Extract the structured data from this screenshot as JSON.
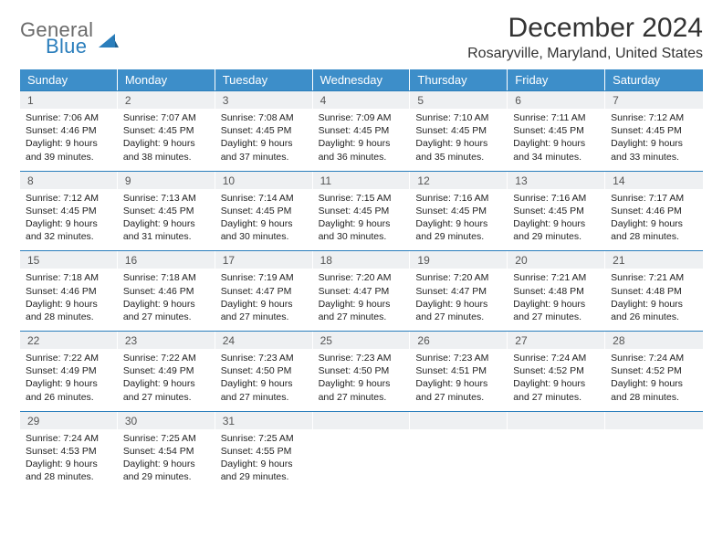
{
  "logo": {
    "top": "General",
    "bottom": "Blue"
  },
  "title": "December 2024",
  "subtitle": "Rosaryville, Maryland, United States",
  "colors": {
    "header_bg": "#3d8ec9",
    "header_text": "#ffffff",
    "daynum_bg": "#eef0f2",
    "week_divider": "#2a7ebc",
    "logo_gray": "#6a6a6a",
    "logo_blue": "#2a7ebc"
  },
  "day_names": [
    "Sunday",
    "Monday",
    "Tuesday",
    "Wednesday",
    "Thursday",
    "Friday",
    "Saturday"
  ],
  "weeks": [
    [
      {
        "n": "1",
        "sr": "Sunrise: 7:06 AM",
        "ss": "Sunset: 4:46 PM",
        "dl1": "Daylight: 9 hours",
        "dl2": "and 39 minutes."
      },
      {
        "n": "2",
        "sr": "Sunrise: 7:07 AM",
        "ss": "Sunset: 4:45 PM",
        "dl1": "Daylight: 9 hours",
        "dl2": "and 38 minutes."
      },
      {
        "n": "3",
        "sr": "Sunrise: 7:08 AM",
        "ss": "Sunset: 4:45 PM",
        "dl1": "Daylight: 9 hours",
        "dl2": "and 37 minutes."
      },
      {
        "n": "4",
        "sr": "Sunrise: 7:09 AM",
        "ss": "Sunset: 4:45 PM",
        "dl1": "Daylight: 9 hours",
        "dl2": "and 36 minutes."
      },
      {
        "n": "5",
        "sr": "Sunrise: 7:10 AM",
        "ss": "Sunset: 4:45 PM",
        "dl1": "Daylight: 9 hours",
        "dl2": "and 35 minutes."
      },
      {
        "n": "6",
        "sr": "Sunrise: 7:11 AM",
        "ss": "Sunset: 4:45 PM",
        "dl1": "Daylight: 9 hours",
        "dl2": "and 34 minutes."
      },
      {
        "n": "7",
        "sr": "Sunrise: 7:12 AM",
        "ss": "Sunset: 4:45 PM",
        "dl1": "Daylight: 9 hours",
        "dl2": "and 33 minutes."
      }
    ],
    [
      {
        "n": "8",
        "sr": "Sunrise: 7:12 AM",
        "ss": "Sunset: 4:45 PM",
        "dl1": "Daylight: 9 hours",
        "dl2": "and 32 minutes."
      },
      {
        "n": "9",
        "sr": "Sunrise: 7:13 AM",
        "ss": "Sunset: 4:45 PM",
        "dl1": "Daylight: 9 hours",
        "dl2": "and 31 minutes."
      },
      {
        "n": "10",
        "sr": "Sunrise: 7:14 AM",
        "ss": "Sunset: 4:45 PM",
        "dl1": "Daylight: 9 hours",
        "dl2": "and 30 minutes."
      },
      {
        "n": "11",
        "sr": "Sunrise: 7:15 AM",
        "ss": "Sunset: 4:45 PM",
        "dl1": "Daylight: 9 hours",
        "dl2": "and 30 minutes."
      },
      {
        "n": "12",
        "sr": "Sunrise: 7:16 AM",
        "ss": "Sunset: 4:45 PM",
        "dl1": "Daylight: 9 hours",
        "dl2": "and 29 minutes."
      },
      {
        "n": "13",
        "sr": "Sunrise: 7:16 AM",
        "ss": "Sunset: 4:45 PM",
        "dl1": "Daylight: 9 hours",
        "dl2": "and 29 minutes."
      },
      {
        "n": "14",
        "sr": "Sunrise: 7:17 AM",
        "ss": "Sunset: 4:46 PM",
        "dl1": "Daylight: 9 hours",
        "dl2": "and 28 minutes."
      }
    ],
    [
      {
        "n": "15",
        "sr": "Sunrise: 7:18 AM",
        "ss": "Sunset: 4:46 PM",
        "dl1": "Daylight: 9 hours",
        "dl2": "and 28 minutes."
      },
      {
        "n": "16",
        "sr": "Sunrise: 7:18 AM",
        "ss": "Sunset: 4:46 PM",
        "dl1": "Daylight: 9 hours",
        "dl2": "and 27 minutes."
      },
      {
        "n": "17",
        "sr": "Sunrise: 7:19 AM",
        "ss": "Sunset: 4:47 PM",
        "dl1": "Daylight: 9 hours",
        "dl2": "and 27 minutes."
      },
      {
        "n": "18",
        "sr": "Sunrise: 7:20 AM",
        "ss": "Sunset: 4:47 PM",
        "dl1": "Daylight: 9 hours",
        "dl2": "and 27 minutes."
      },
      {
        "n": "19",
        "sr": "Sunrise: 7:20 AM",
        "ss": "Sunset: 4:47 PM",
        "dl1": "Daylight: 9 hours",
        "dl2": "and 27 minutes."
      },
      {
        "n": "20",
        "sr": "Sunrise: 7:21 AM",
        "ss": "Sunset: 4:48 PM",
        "dl1": "Daylight: 9 hours",
        "dl2": "and 27 minutes."
      },
      {
        "n": "21",
        "sr": "Sunrise: 7:21 AM",
        "ss": "Sunset: 4:48 PM",
        "dl1": "Daylight: 9 hours",
        "dl2": "and 26 minutes."
      }
    ],
    [
      {
        "n": "22",
        "sr": "Sunrise: 7:22 AM",
        "ss": "Sunset: 4:49 PM",
        "dl1": "Daylight: 9 hours",
        "dl2": "and 26 minutes."
      },
      {
        "n": "23",
        "sr": "Sunrise: 7:22 AM",
        "ss": "Sunset: 4:49 PM",
        "dl1": "Daylight: 9 hours",
        "dl2": "and 27 minutes."
      },
      {
        "n": "24",
        "sr": "Sunrise: 7:23 AM",
        "ss": "Sunset: 4:50 PM",
        "dl1": "Daylight: 9 hours",
        "dl2": "and 27 minutes."
      },
      {
        "n": "25",
        "sr": "Sunrise: 7:23 AM",
        "ss": "Sunset: 4:50 PM",
        "dl1": "Daylight: 9 hours",
        "dl2": "and 27 minutes."
      },
      {
        "n": "26",
        "sr": "Sunrise: 7:23 AM",
        "ss": "Sunset: 4:51 PM",
        "dl1": "Daylight: 9 hours",
        "dl2": "and 27 minutes."
      },
      {
        "n": "27",
        "sr": "Sunrise: 7:24 AM",
        "ss": "Sunset: 4:52 PM",
        "dl1": "Daylight: 9 hours",
        "dl2": "and 27 minutes."
      },
      {
        "n": "28",
        "sr": "Sunrise: 7:24 AM",
        "ss": "Sunset: 4:52 PM",
        "dl1": "Daylight: 9 hours",
        "dl2": "and 28 minutes."
      }
    ],
    [
      {
        "n": "29",
        "sr": "Sunrise: 7:24 AM",
        "ss": "Sunset: 4:53 PM",
        "dl1": "Daylight: 9 hours",
        "dl2": "and 28 minutes."
      },
      {
        "n": "30",
        "sr": "Sunrise: 7:25 AM",
        "ss": "Sunset: 4:54 PM",
        "dl1": "Daylight: 9 hours",
        "dl2": "and 29 minutes."
      },
      {
        "n": "31",
        "sr": "Sunrise: 7:25 AM",
        "ss": "Sunset: 4:55 PM",
        "dl1": "Daylight: 9 hours",
        "dl2": "and 29 minutes."
      },
      {
        "empty": true
      },
      {
        "empty": true
      },
      {
        "empty": true
      },
      {
        "empty": true
      }
    ]
  ]
}
